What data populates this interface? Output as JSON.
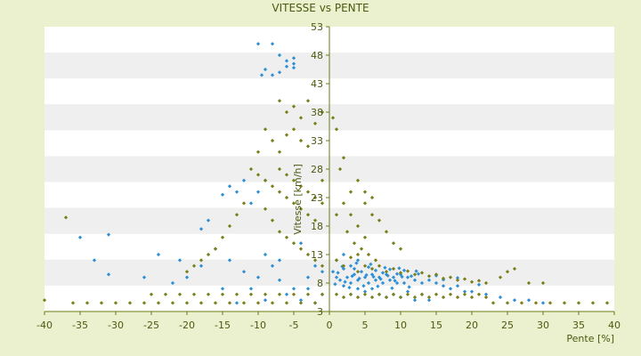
{
  "chart_data": {
    "type": "scatter",
    "title": "VITESSE vs PENTE",
    "xlabel": "Pente [%]",
    "ylabel": "Vitesse [km/h]",
    "xlim": [
      -40,
      40
    ],
    "ylim": [
      3,
      53
    ],
    "x_ticks": [
      "-40",
      "-35",
      "-30",
      "-25",
      "-20",
      "-15",
      "-10",
      "-5",
      "0",
      "5",
      "10",
      "15",
      "20",
      "25",
      "30",
      "35",
      "40"
    ],
    "y_ticks": [
      "53",
      "48",
      "43",
      "38",
      "33",
      "28",
      "23",
      "18",
      "13",
      "8",
      "3"
    ],
    "grid": true,
    "colors": {
      "page_background": "#ebf1cf",
      "band_light": "#ffffff",
      "band_dark": "#efefef",
      "axis": "#6b7a1a",
      "text": "#4a5a10",
      "series_blue": "#2f8fd6",
      "series_olive": "#7a7f1a"
    },
    "series": [
      {
        "color": "#2f8fd6",
        "points": [
          [
            -10,
            50
          ],
          [
            -8,
            50
          ],
          [
            -7,
            48
          ],
          [
            -5,
            47.5
          ],
          [
            -6,
            47
          ],
          [
            -5,
            46.5
          ],
          [
            -9,
            45.5
          ],
          [
            -8,
            44.5
          ],
          [
            -6,
            46
          ],
          [
            -7,
            45
          ],
          [
            -5,
            45.8
          ],
          [
            -9.5,
            44.5
          ],
          [
            -13,
            24
          ],
          [
            -14,
            25
          ],
          [
            -12,
            26
          ],
          [
            -11,
            22
          ],
          [
            -10,
            24
          ],
          [
            -9,
            26
          ],
          [
            -15,
            23.5
          ],
          [
            -17,
            19
          ],
          [
            -18,
            17.5
          ],
          [
            -16,
            14
          ],
          [
            -14,
            12
          ],
          [
            -12,
            10
          ],
          [
            -10,
            9
          ],
          [
            -8,
            11
          ],
          [
            -7,
            8.5
          ],
          [
            -6,
            6
          ],
          [
            -5,
            7
          ],
          [
            -4,
            5
          ],
          [
            -3,
            9
          ],
          [
            -2,
            4.5
          ],
          [
            -1,
            10
          ],
          [
            -9,
            13
          ],
          [
            -20,
            9
          ],
          [
            -22,
            8
          ],
          [
            -24,
            13
          ],
          [
            -26,
            9
          ],
          [
            -31,
            9.5
          ],
          [
            -33,
            12
          ],
          [
            -35,
            16
          ],
          [
            -31,
            16.5
          ],
          [
            -21,
            12
          ],
          [
            -18,
            11
          ],
          [
            -15,
            7
          ],
          [
            -13,
            4.5
          ],
          [
            -11,
            7
          ],
          [
            -9,
            5
          ],
          [
            -7,
            12
          ],
          [
            -4,
            15
          ],
          [
            -3,
            7
          ],
          [
            -2,
            11
          ],
          [
            -1,
            6
          ],
          [
            0.5,
            10
          ],
          [
            1,
            9
          ],
          [
            1.5,
            8.5
          ],
          [
            2,
            10.5
          ],
          [
            2.5,
            9
          ],
          [
            3,
            8
          ],
          [
            3.5,
            9.5
          ],
          [
            4,
            8.5
          ],
          [
            4.5,
            10
          ],
          [
            5,
            9
          ],
          [
            5.5,
            8
          ],
          [
            6,
            9.5
          ],
          [
            6.5,
            8.5
          ],
          [
            7,
            9
          ],
          [
            7.5,
            8
          ],
          [
            8,
            9.5
          ],
          [
            8.5,
            8.5
          ],
          [
            9,
            9
          ],
          [
            9.5,
            8
          ],
          [
            10,
            9.5
          ],
          [
            10.5,
            8
          ],
          [
            11,
            9
          ],
          [
            12,
            8.5
          ],
          [
            13,
            8
          ],
          [
            14,
            8.5
          ],
          [
            15,
            8
          ],
          [
            16,
            7.5
          ],
          [
            17,
            7
          ],
          [
            18,
            7.5
          ],
          [
            20,
            6.5
          ],
          [
            22,
            6
          ],
          [
            24,
            5.5
          ],
          [
            26,
            5
          ],
          [
            28,
            5
          ],
          [
            30,
            4.5
          ],
          [
            3,
            11
          ],
          [
            4,
            12
          ],
          [
            5,
            6.5
          ],
          [
            6,
            7
          ],
          [
            7,
            6
          ],
          [
            8,
            5.5
          ],
          [
            9,
            6
          ],
          [
            10,
            5.5
          ],
          [
            11,
            6.5
          ],
          [
            12,
            5
          ],
          [
            13,
            6
          ],
          [
            14,
            5
          ],
          [
            1,
            12
          ],
          [
            2,
            13
          ],
          [
            3,
            6
          ],
          [
            4,
            7
          ],
          [
            2,
            7.5
          ],
          [
            3.5,
            10.5
          ],
          [
            5.5,
            10.8
          ],
          [
            6.5,
            10.2
          ],
          [
            7.5,
            9.8
          ],
          [
            8.5,
            10.4
          ],
          [
            9.5,
            9.6
          ],
          [
            10.5,
            10.2
          ],
          [
            11.5,
            9.2
          ],
          [
            12.5,
            9.6
          ],
          [
            15,
            9.3
          ],
          [
            16,
            8.6
          ],
          [
            18,
            8.9
          ],
          [
            19,
            6.5
          ],
          [
            21,
            7.7
          ],
          [
            1.2,
            9.8
          ],
          [
            2.2,
            8.2
          ],
          [
            3.2,
            9.2
          ],
          [
            4.2,
            8.8
          ],
          [
            5.2,
            9.4
          ],
          [
            6.2,
            9.1
          ],
          [
            7.2,
            8.7
          ],
          [
            8.2,
            9.3
          ],
          [
            9.2,
            8.4
          ],
          [
            10.2,
            9.1
          ],
          [
            0.8,
            7.8
          ],
          [
            1.8,
            10.9
          ],
          [
            2.8,
            7.2
          ],
          [
            3.8,
            11.5
          ],
          [
            4.8,
            7.5
          ],
          [
            5.8,
            11.3
          ],
          [
            6.8,
            7.4
          ],
          [
            7.8,
            10.7
          ],
          [
            8.8,
            7.1
          ],
          [
            9.8,
            10.6
          ],
          [
            11.2,
            7.3
          ],
          [
            12.2,
            10.1
          ]
        ]
      },
      {
        "color": "#7a7f1a",
        "points": [
          [
            -7,
            40
          ],
          [
            -6,
            38
          ],
          [
            -5,
            39
          ],
          [
            -4,
            37
          ],
          [
            -3,
            40
          ],
          [
            -2,
            36
          ],
          [
            -1,
            38
          ],
          [
            -5,
            35
          ],
          [
            -4,
            33
          ],
          [
            -3,
            32
          ],
          [
            -6,
            34
          ],
          [
            -7,
            31
          ],
          [
            -8,
            33
          ],
          [
            -9,
            35
          ],
          [
            -10,
            31
          ],
          [
            -11,
            28
          ],
          [
            -10,
            27
          ],
          [
            -9,
            26
          ],
          [
            -8,
            25
          ],
          [
            -7,
            24
          ],
          [
            -6,
            23
          ],
          [
            -5,
            22
          ],
          [
            -4,
            21
          ],
          [
            -3,
            20
          ],
          [
            -2,
            19
          ],
          [
            -1,
            26
          ],
          [
            -7,
            28
          ],
          [
            -6,
            27
          ],
          [
            -5,
            26
          ],
          [
            -4,
            25
          ],
          [
            -3,
            24
          ],
          [
            -2,
            23
          ],
          [
            -1,
            22
          ],
          [
            -12,
            22
          ],
          [
            -13,
            20
          ],
          [
            -14,
            18
          ],
          [
            -15,
            16
          ],
          [
            -16,
            14
          ],
          [
            -17,
            13
          ],
          [
            -18,
            12
          ],
          [
            -19,
            11
          ],
          [
            -20,
            10
          ],
          [
            -9,
            21
          ],
          [
            -8,
            19
          ],
          [
            -7,
            17
          ],
          [
            -6,
            16
          ],
          [
            -5,
            15
          ],
          [
            -4,
            14
          ],
          [
            -3,
            13
          ],
          [
            -2,
            12
          ],
          [
            -1,
            11
          ],
          [
            -37,
            19.5
          ],
          [
            -25,
            6
          ],
          [
            -23,
            6
          ],
          [
            -21,
            6
          ],
          [
            -19,
            6
          ],
          [
            -17,
            6
          ],
          [
            -15,
            6
          ],
          [
            -13,
            6
          ],
          [
            -11,
            6
          ],
          [
            -9,
            6
          ],
          [
            -7,
            6
          ],
          [
            -5,
            6
          ],
          [
            -3,
            6
          ],
          [
            -1,
            6
          ],
          [
            -30,
            4.5
          ],
          [
            -28,
            4.5
          ],
          [
            -26,
            4.5
          ],
          [
            -24,
            4.5
          ],
          [
            -22,
            4.5
          ],
          [
            -20,
            4.5
          ],
          [
            -18,
            4.5
          ],
          [
            -16,
            4.5
          ],
          [
            -14,
            4.5
          ],
          [
            -12,
            4.5
          ],
          [
            -10,
            4.5
          ],
          [
            -8,
            4.5
          ],
          [
            -6,
            4.5
          ],
          [
            -4,
            4.5
          ],
          [
            -2,
            4.5
          ],
          [
            -36,
            4.5
          ],
          [
            -34,
            4.5
          ],
          [
            -32,
            4.5
          ],
          [
            -40,
            5
          ],
          [
            1,
            6
          ],
          [
            2,
            5.5
          ],
          [
            3,
            6
          ],
          [
            4,
            5.5
          ],
          [
            5,
            6
          ],
          [
            6,
            5.5
          ],
          [
            7,
            6
          ],
          [
            8,
            5.5
          ],
          [
            9,
            6
          ],
          [
            10,
            5.5
          ],
          [
            11,
            6
          ],
          [
            12,
            5.5
          ],
          [
            13,
            6
          ],
          [
            14,
            5.5
          ],
          [
            15,
            6
          ],
          [
            16,
            5.5
          ],
          [
            17,
            6
          ],
          [
            18,
            5.5
          ],
          [
            19,
            6
          ],
          [
            20,
            5.5
          ],
          [
            21,
            6
          ],
          [
            22,
            5.5
          ],
          [
            23,
            4.5
          ],
          [
            25,
            4.5
          ],
          [
            27,
            4.5
          ],
          [
            29,
            4.5
          ],
          [
            31,
            4.5
          ],
          [
            33,
            4.5
          ],
          [
            35,
            4.5
          ],
          [
            37,
            4.5
          ],
          [
            39,
            4.5
          ],
          [
            1,
            12
          ],
          [
            2,
            11
          ],
          [
            3,
            12.5
          ],
          [
            4,
            10
          ],
          [
            5,
            11
          ],
          [
            6,
            10.5
          ],
          [
            7,
            11
          ],
          [
            8,
            10
          ],
          [
            9,
            10.5
          ],
          [
            10,
            9.8
          ],
          [
            11,
            10.1
          ],
          [
            12,
            9.5
          ],
          [
            13,
            9.8
          ],
          [
            14,
            9.2
          ],
          [
            15,
            9.5
          ],
          [
            16,
            8.8
          ],
          [
            17,
            9
          ],
          [
            18,
            8.5
          ],
          [
            19,
            8.7
          ],
          [
            20,
            8.2
          ],
          [
            21,
            8.4
          ],
          [
            22,
            8
          ],
          [
            24,
            9
          ],
          [
            25,
            10
          ],
          [
            26,
            10.5
          ],
          [
            28,
            8
          ],
          [
            30,
            8
          ],
          [
            0.5,
            37
          ],
          [
            1,
            35
          ],
          [
            1.5,
            28
          ],
          [
            2,
            30
          ],
          [
            1,
            20
          ],
          [
            2,
            22
          ],
          [
            3,
            24
          ],
          [
            4,
            26
          ],
          [
            5,
            24
          ],
          [
            6,
            23
          ],
          [
            7,
            19
          ],
          [
            8,
            17
          ],
          [
            9,
            15
          ],
          [
            10,
            14
          ],
          [
            2.5,
            17
          ],
          [
            3.5,
            15
          ],
          [
            4.5,
            14
          ],
          [
            5.5,
            13
          ],
          [
            6.5,
            12
          ],
          [
            3,
            20
          ],
          [
            4,
            18
          ],
          [
            5,
            16
          ],
          [
            5,
            22
          ],
          [
            6,
            20
          ],
          [
            4,
            13
          ]
        ]
      }
    ]
  }
}
